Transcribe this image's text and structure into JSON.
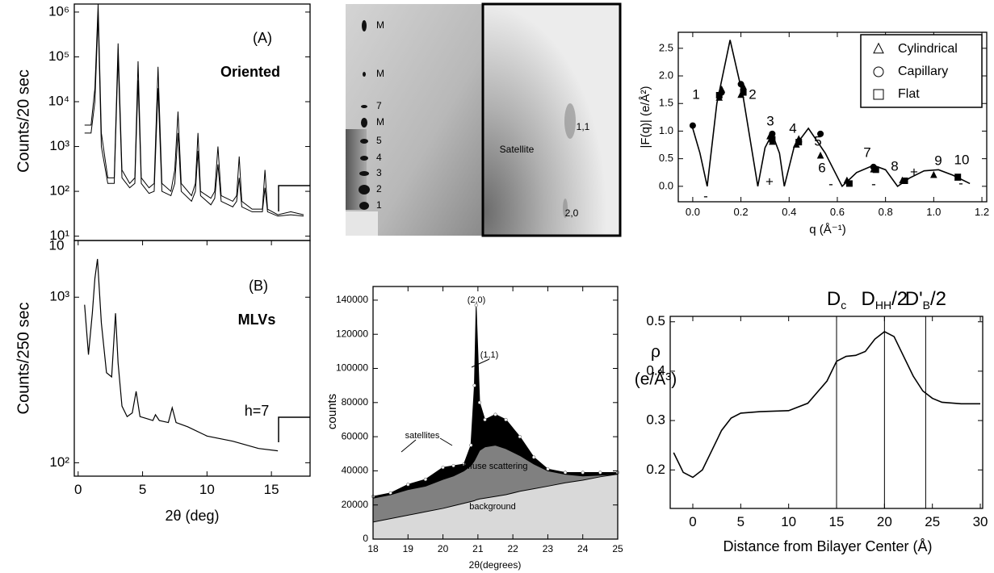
{
  "chart_data": [
    {
      "type": "line",
      "ylabel": "Counts/20 sec",
      "ylog": true,
      "annotations": [
        "(A)",
        "Oriented"
      ],
      "xlim": [
        -0.3,
        18
      ],
      "ylim": [
        8,
        1510000
      ],
      "yticks": [
        {
          "value": 10,
          "label": "10¹"
        },
        {
          "value": 100,
          "label": "10²"
        },
        {
          "value": 1000,
          "label": "10³"
        },
        {
          "value": 10000,
          "label": "10⁴"
        },
        {
          "value": 100000,
          "label": "10⁵"
        },
        {
          "value": 1000000,
          "label": "10⁶"
        }
      ],
      "series": [
        {
          "color": "#000000",
          "x": [
            0.5,
            1.0,
            1.3,
            1.55,
            1.8,
            2.3,
            2.8,
            3.1,
            3.4,
            4.0,
            4.4,
            4.65,
            4.9,
            5.5,
            5.9,
            6.2,
            6.5,
            7.2,
            7.5,
            7.75,
            8.0,
            8.8,
            9.1,
            9.3,
            9.5,
            10.3,
            10.6,
            10.85,
            11.1,
            12.0,
            12.3,
            12.5,
            12.7,
            13.5,
            14.3,
            14.5,
            14.7,
            15.5,
            16.5,
            17.5
          ],
          "values": [
            3000,
            3000,
            20000,
            1500000,
            2000,
            200,
            200,
            200000,
            300,
            150,
            200,
            80000,
            200,
            120,
            150,
            60000,
            150,
            100,
            300,
            6000,
            150,
            80,
            150,
            2000,
            100,
            70,
            100,
            1000,
            80,
            60,
            80,
            600,
            60,
            40,
            40,
            300,
            40,
            30,
            35,
            30
          ]
        },
        {
          "color": "#000000",
          "x": [
            0.5,
            1.0,
            1.3,
            1.55,
            1.8,
            2.3,
            2.8,
            3.1,
            3.4,
            4.0,
            4.4,
            4.65,
            4.9,
            5.5,
            5.9,
            6.2,
            6.5,
            7.2,
            7.5,
            7.75,
            8.0,
            8.8,
            9.1,
            9.3,
            9.5,
            10.3,
            10.6,
            10.85,
            11.1,
            12.0,
            12.3,
            12.5,
            12.7,
            13.5,
            14.3,
            14.5,
            14.7,
            15.5,
            16.5,
            17.5
          ],
          "values": [
            2000,
            2000,
            10000,
            800000,
            1000,
            150,
            150,
            100000,
            200,
            120,
            150,
            30000,
            150,
            90,
            100,
            20000,
            100,
            80,
            150,
            2000,
            100,
            60,
            100,
            800,
            80,
            50,
            70,
            400,
            60,
            45,
            60,
            200,
            45,
            35,
            35,
            120,
            35,
            28,
            30,
            28
          ]
        }
      ]
    },
    {
      "type": "line",
      "xlabel": "2θ (deg)",
      "ylabel": "Counts/250 sec",
      "ylog": true,
      "annotations": [
        "(B)",
        "MLVs",
        "h=7",
        "10"
      ],
      "xlim": [
        -0.3,
        18
      ],
      "xticks": [
        0,
        5,
        10,
        15
      ],
      "ylim": [
        83,
        2200
      ],
      "yticks": [
        {
          "value": 100,
          "label": "10²"
        },
        {
          "value": 1000,
          "label": "10³"
        }
      ],
      "series": [
        {
          "color": "#000000",
          "x": [
            0.5,
            0.8,
            1.1,
            1.3,
            1.5,
            1.8,
            2.2,
            2.6,
            2.9,
            3.1,
            3.4,
            3.8,
            4.2,
            4.5,
            4.8,
            5.3,
            5.8,
            6.0,
            6.3,
            7.0,
            7.3,
            7.6,
            8.5,
            10,
            12,
            14,
            15.5
          ],
          "values": [
            900,
            450,
            800,
            1300,
            1700,
            700,
            350,
            330,
            800,
            400,
            220,
            190,
            200,
            270,
            190,
            185,
            180,
            195,
            180,
            175,
            215,
            175,
            165,
            145,
            135,
            122,
            118
          ]
        }
      ]
    },
    {
      "type": "line",
      "xlabel": "q (Å⁻¹)",
      "ylabel": "|F(q)| (e/Å²)",
      "annotations": [
        "1",
        "2",
        "3",
        "4",
        "5",
        "6",
        "7",
        "8",
        "9",
        "10",
        "-",
        "+",
        "-",
        "-",
        "+",
        "-"
      ],
      "legend": "upper right",
      "xlim": [
        -0.06,
        1.22
      ],
      "ylim": [
        -0.28,
        2.79
      ],
      "xticks": [
        {
          "value": 0,
          "label": "0.0"
        },
        {
          "value": 0.2,
          "label": "0.2"
        },
        {
          "value": 0.4,
          "label": "0.4"
        },
        {
          "value": 0.6,
          "label": "0.6"
        },
        {
          "value": 0.8,
          "label": "0.8"
        },
        {
          "value": 1,
          "label": "1.0"
        },
        {
          "value": 1.2,
          "label": "1.2"
        }
      ],
      "yticks": [
        {
          "value": 0,
          "label": "0.0"
        },
        0.5,
        {
          "value": 1,
          "label": "1.0"
        },
        1.5,
        {
          "value": 2,
          "label": "2.0"
        },
        2.5
      ],
      "series": [
        {
          "color": "#000000",
          "marker": "none",
          "x": [
            0,
            0.03,
            0.06,
            0.1,
            0.155,
            0.21,
            0.27,
            0.3,
            0.33,
            0.36,
            0.38,
            0.42,
            0.48,
            0.55,
            0.62,
            0.68,
            0.75,
            0.8,
            0.85,
            0.9,
            0.96,
            1.02,
            1.08,
            1.15
          ],
          "values": [
            1.05,
            0.6,
            0,
            1.5,
            2.65,
            1.6,
            0,
            0.7,
            0.95,
            0.6,
            0,
            0.7,
            1.05,
            0.6,
            0,
            0.25,
            0.38,
            0.3,
            0,
            0.15,
            0.28,
            0.3,
            0.2,
            0.05
          ]
        },
        {
          "name": "Cylindrical",
          "color": "#000000",
          "marker": "triangle",
          "x": [
            0.11,
            0.12,
            0.2,
            0.21,
            0.32,
            0.33,
            0.43,
            0.44,
            0.53,
            0.64,
            0.75,
            0.87,
            1.0,
            1.1
          ],
          "values": [
            1.6,
            1.75,
            1.65,
            1.8,
            0.9,
            0.8,
            0.75,
            0.85,
            0.55,
            0.1,
            0.3,
            0.1,
            0.2,
            0.15
          ]
        },
        {
          "name": "Capillary",
          "color": "#000000",
          "marker": "circle",
          "x": [
            0,
            0.12,
            0.2,
            0.33,
            0.44,
            0.53,
            0.75,
            0.88
          ],
          "values": [
            1.1,
            1.7,
            1.85,
            0.95,
            0.8,
            0.95,
            0.35,
            0.1
          ]
        },
        {
          "name": "Flat",
          "color": "#000000",
          "marker": "square",
          "x": [
            0.11,
            0.21,
            0.33,
            0.44,
            0.65,
            0.76,
            0.88,
            1.1
          ],
          "values": [
            1.65,
            1.7,
            0.85,
            0.8,
            0.05,
            0.3,
            0.1,
            0.17
          ]
        }
      ]
    },
    {
      "type": "area",
      "xlabel": "2θ(degrees)",
      "ylabel": "counts",
      "annotations": [
        "(2,0)",
        "(1,1)",
        "satellites",
        "diffuse scattering",
        "background"
      ],
      "xlim": [
        18,
        25
      ],
      "ylim": [
        0,
        148000
      ],
      "xticks": [
        18,
        19,
        20,
        21,
        22,
        23,
        24,
        25
      ],
      "yticks": [
        0,
        20000,
        40000,
        60000,
        80000,
        100000,
        120000,
        140000
      ],
      "x": [
        18,
        18.5,
        19,
        19.5,
        20,
        20.3,
        20.6,
        20.8,
        20.9,
        20.95,
        21.05,
        21.2,
        21.5,
        21.8,
        22.2,
        22.6,
        23,
        23.5,
        24,
        24.5,
        25
      ],
      "series": [
        {
          "color": "#000000",
          "values": [
            25000,
            27000,
            32000,
            35000,
            42000,
            43000,
            44000,
            55000,
            90000,
            137000,
            80000,
            70000,
            73000,
            70000,
            60000,
            48000,
            41000,
            39000,
            39000,
            39000,
            39000
          ]
        },
        {
          "color": "#808080",
          "values": [
            24000,
            26000,
            29000,
            31000,
            35000,
            37000,
            40000,
            43000,
            46000,
            48000,
            52000,
            54000,
            55000,
            53000,
            49000,
            44000,
            40000,
            38000,
            37000,
            37500,
            38000
          ]
        },
        {
          "color": "#d9d9d9",
          "values": [
            10000,
            12000,
            14000,
            16000,
            18000,
            19500,
            21000,
            22000,
            22500,
            23000,
            23500,
            24000,
            25000,
            26000,
            28000,
            29500,
            31000,
            33000,
            34500,
            36500,
            38000
          ]
        }
      ]
    },
    {
      "type": "line",
      "xlabel": "Distance from Bilayer Center (Å)",
      "ylabel": [
        "ρ",
        "(e/Å³)"
      ],
      "xlim": [
        -2.36,
        30.25
      ],
      "ylim": [
        0.122,
        0.511
      ],
      "xticks": [
        0,
        5,
        10,
        15,
        20,
        25,
        30
      ],
      "yticks": [
        0.2,
        0.3,
        0.4,
        0.5
      ],
      "vlines": [
        {
          "value": 15,
          "text": "D",
          "sub": "c"
        },
        {
          "value": 20,
          "text": "D",
          "sub": "HH",
          "suffix": "/2"
        },
        {
          "value": 24.3,
          "text": "D'",
          "sub": "B",
          "suffix": "/2"
        }
      ],
      "series": [
        {
          "color": "#000000",
          "x": [
            -2,
            -1,
            0,
            1,
            2,
            3,
            4,
            5,
            7,
            10,
            12,
            14,
            15,
            16,
            17,
            18,
            19,
            20,
            21,
            22,
            23,
            24,
            25,
            26,
            28,
            30
          ],
          "values": [
            0.235,
            0.195,
            0.185,
            0.2,
            0.24,
            0.28,
            0.305,
            0.315,
            0.318,
            0.32,
            0.335,
            0.38,
            0.42,
            0.43,
            0.432,
            0.44,
            0.465,
            0.48,
            0.47,
            0.43,
            0.39,
            0.36,
            0.345,
            0.337,
            0.334,
            0.334
          ]
        }
      ]
    }
  ],
  "image_panel": {
    "left_labels": [
      "M",
      "M",
      "7",
      "M",
      "5",
      "4",
      "3",
      "2",
      "1"
    ],
    "right_labels": [
      "1,1",
      "Satellite",
      "2,0"
    ]
  }
}
